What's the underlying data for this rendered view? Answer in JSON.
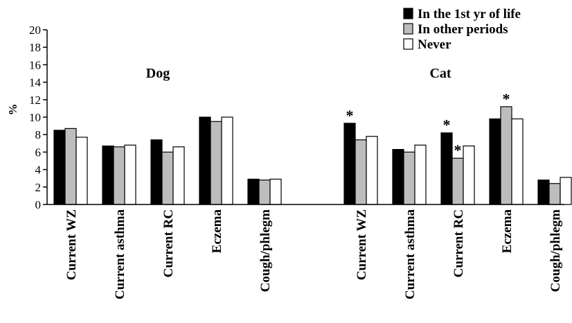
{
  "chart_data": {
    "type": "bar",
    "ylabel": "%",
    "ylim": [
      0,
      20
    ],
    "yticks": [
      0,
      2,
      4,
      6,
      8,
      10,
      12,
      14,
      16,
      18,
      20
    ],
    "legend_position": "top-right",
    "groups": [
      {
        "title": "Dog",
        "categories": [
          "Current WZ",
          "Current asthma",
          "Current RC",
          "Eczema",
          "Cough/phlegm"
        ]
      },
      {
        "title": "Cat",
        "categories": [
          "Current WZ",
          "Current asthma",
          "Current RC",
          "Eczema",
          "Cough/phlegm"
        ]
      }
    ],
    "series": [
      {
        "name": "In the 1st yr of life",
        "color": "#000000",
        "values": [
          8.5,
          6.7,
          7.4,
          10.0,
          2.9,
          9.3,
          6.3,
          8.2,
          9.8,
          2.8
        ]
      },
      {
        "name": "In other periods",
        "color": "#bdbdbd",
        "values": [
          8.7,
          6.6,
          6.0,
          9.5,
          2.8,
          7.4,
          6.0,
          5.3,
          11.2,
          2.4
        ]
      },
      {
        "name": "Never",
        "color": "#ffffff",
        "values": [
          7.7,
          6.8,
          6.6,
          10.0,
          2.9,
          7.8,
          6.8,
          6.7,
          9.8,
          3.1
        ]
      }
    ],
    "annotations": [
      {
        "text": "*",
        "bar_index": 5,
        "series_index": 0
      },
      {
        "text": "*",
        "bar_index": 7,
        "series_index": 0
      },
      {
        "text": "*",
        "bar_index": 7,
        "series_index": 1
      },
      {
        "text": "*",
        "bar_index": 8,
        "series_index": 1
      }
    ]
  }
}
